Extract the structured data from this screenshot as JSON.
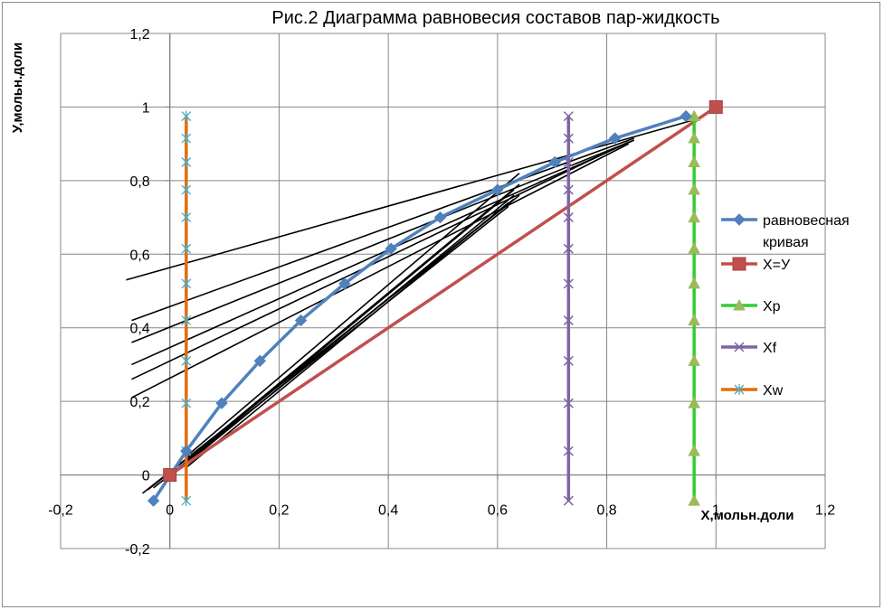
{
  "chart_data": {
    "type": "scatter",
    "title": "Рис.2 Диаграмма равновесия составов пар-жидкость",
    "xlabel": "Х,мольн.доли",
    "ylabel": "У,мольн.доли",
    "xlim": [
      -0.2,
      1.2
    ],
    "ylim": [
      -0.2,
      1.2
    ],
    "x_ticks": [
      "-0,2",
      "0",
      "0,2",
      "0,4",
      "0,6",
      "0,8",
      "1",
      "1,2"
    ],
    "y_ticks": [
      "-0,2",
      "0",
      "0,2",
      "0,4",
      "0,6",
      "0,8",
      "1",
      "1,2"
    ],
    "grid": true,
    "legend_position": "right",
    "series": [
      {
        "name": "равновесная кривая",
        "color": "#4F81BD",
        "marker": "diamond",
        "x": [
          -0.03,
          0.03,
          0.095,
          0.165,
          0.24,
          0.32,
          0.405,
          0.495,
          0.6,
          0.705,
          0.815,
          0.945
        ],
        "y": [
          -0.07,
          0.065,
          0.195,
          0.31,
          0.42,
          0.52,
          0.615,
          0.7,
          0.775,
          0.85,
          0.915,
          0.975
        ]
      },
      {
        "name": "Х=У",
        "color": "#C0504D",
        "marker": "square",
        "x": [
          0,
          1
        ],
        "y": [
          0,
          1
        ]
      },
      {
        "name": "Хр",
        "color": "#9BBB59",
        "line_color": "#33CC33",
        "marker": "triangle",
        "x": [
          0.96,
          0.96,
          0.96,
          0.96,
          0.96,
          0.96,
          0.96,
          0.96,
          0.96,
          0.96,
          0.96,
          0.96
        ],
        "y": [
          -0.07,
          0.065,
          0.195,
          0.31,
          0.42,
          0.52,
          0.615,
          0.7,
          0.775,
          0.85,
          0.915,
          0.975
        ]
      },
      {
        "name": "Хf",
        "color": "#8064A2",
        "marker": "x",
        "x": [
          0.73,
          0.73,
          0.73,
          0.73,
          0.73,
          0.73,
          0.73,
          0.73,
          0.73,
          0.73,
          0.73,
          0.73
        ],
        "y": [
          -0.07,
          0.065,
          0.195,
          0.31,
          0.42,
          0.52,
          0.615,
          0.7,
          0.775,
          0.85,
          0.915,
          0.975
        ]
      },
      {
        "name": "Хw",
        "color": "#4BACC6",
        "line_color": "#E36C09",
        "marker": "star",
        "x": [
          0.03,
          0.03,
          0.03,
          0.03,
          0.03,
          0.03,
          0.03,
          0.03,
          0.03,
          0.03,
          0.03,
          0.03
        ],
        "y": [
          -0.07,
          0.065,
          0.195,
          0.31,
          0.42,
          0.52,
          0.615,
          0.7,
          0.775,
          0.85,
          0.915,
          0.975
        ]
      }
    ],
    "unlabeled_lines": {
      "color": "#000000",
      "segments": [
        [
          [
            -0.08,
            0.53
          ],
          [
            0.96,
            0.965
          ]
        ],
        [
          [
            -0.07,
            0.42
          ],
          [
            0.85,
            0.915
          ]
        ],
        [
          [
            -0.07,
            0.36
          ],
          [
            0.85,
            0.91
          ]
        ],
        [
          [
            -0.07,
            0.3
          ],
          [
            0.85,
            0.91
          ]
        ],
        [
          [
            -0.07,
            0.26
          ],
          [
            0.84,
            0.905
          ]
        ],
        [
          [
            -0.07,
            0.21
          ],
          [
            0.84,
            0.9
          ]
        ],
        [
          [
            0.03,
            0.05
          ],
          [
            0.64,
            0.82
          ]
        ],
        [
          [
            0.03,
            0.04
          ],
          [
            0.64,
            0.79
          ]
        ],
        [
          [
            0.03,
            0.035
          ],
          [
            0.63,
            0.775
          ]
        ],
        [
          [
            0.03,
            0.03
          ],
          [
            0.63,
            0.76
          ]
        ],
        [
          [
            0.03,
            0.02
          ],
          [
            0.62,
            0.74
          ]
        ],
        [
          [
            -0.05,
            -0.05
          ],
          [
            0.64,
            0.76
          ]
        ],
        [
          [
            -0.04,
            -0.04
          ],
          [
            0.63,
            0.75
          ]
        ],
        [
          [
            -0.03,
            -0.035
          ],
          [
            0.62,
            0.73
          ]
        ]
      ]
    }
  }
}
